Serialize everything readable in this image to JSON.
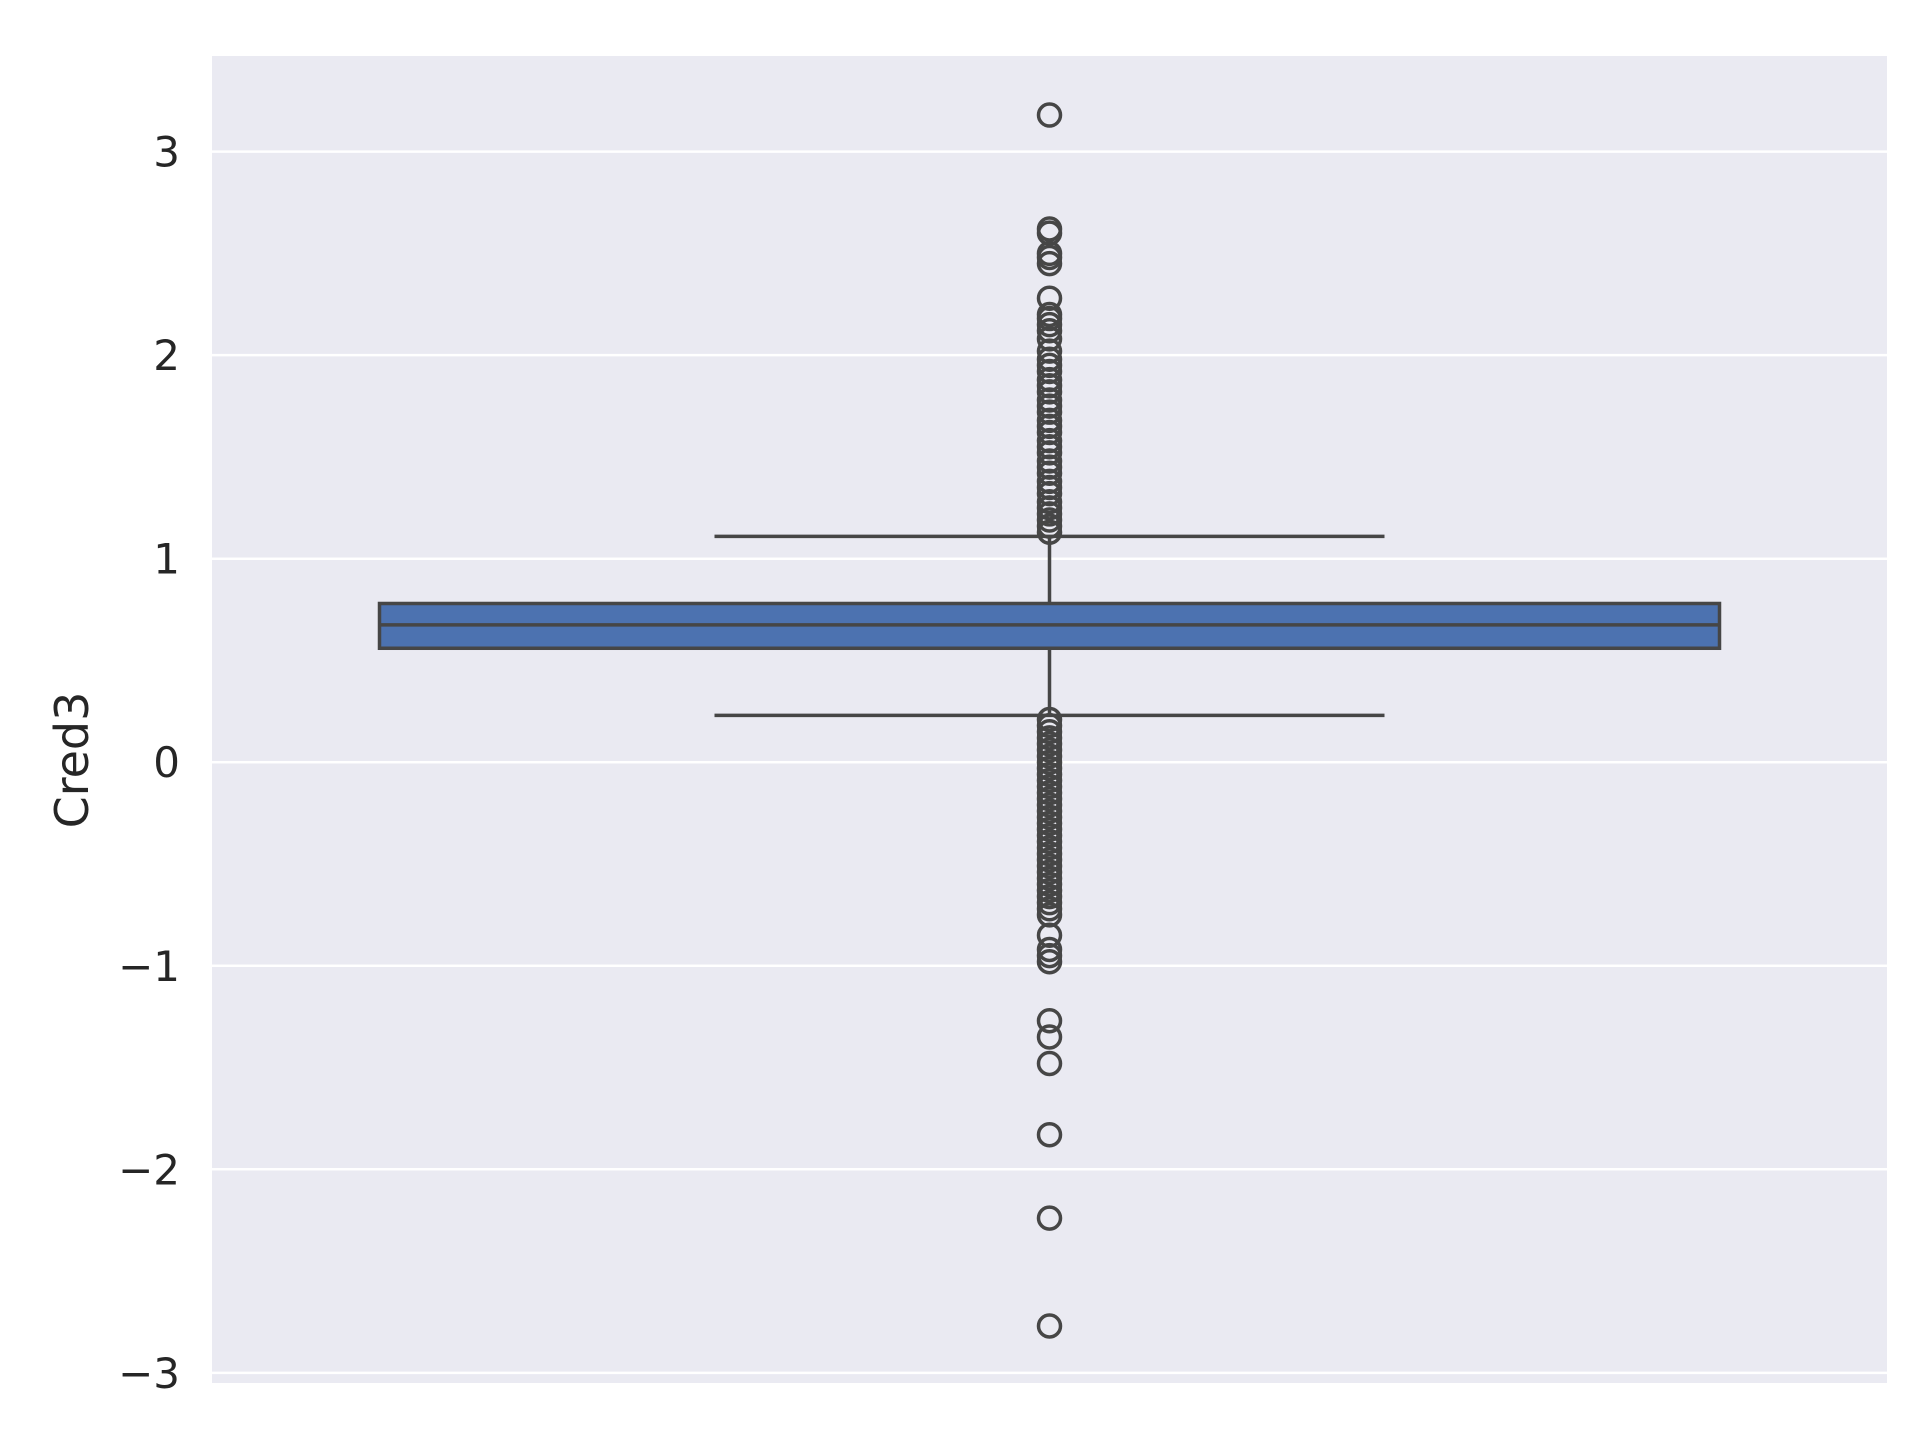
{
  "chart_data": {
    "type": "box",
    "title": "",
    "xlabel": "",
    "ylabel": "Cred3",
    "ylim": [
      -3.05,
      3.47
    ],
    "yticks": [
      3,
      2,
      1,
      0,
      -1,
      -2,
      -3
    ],
    "ytick_labels": [
      "3",
      "2",
      "1",
      "0",
      "−1",
      "−2",
      "−3"
    ],
    "grid": true,
    "colors": {
      "plot_background": "#eaeaf2",
      "grid": "#ffffff",
      "box_fill": "#4c72b0",
      "lines": "#464646"
    },
    "box": {
      "whisker_low": 0.23,
      "q1": 0.56,
      "median": 0.675,
      "q3": 0.78,
      "whisker_high": 1.11
    },
    "outliers_high": [
      3.18,
      2.62,
      2.6,
      2.5,
      2.48,
      2.45,
      2.28,
      2.2,
      2.18,
      2.15,
      2.12,
      2.08,
      2.02,
      1.98,
      1.95,
      1.92,
      1.88,
      1.85,
      1.82,
      1.78,
      1.75,
      1.72,
      1.68,
      1.65,
      1.62,
      1.58,
      1.55,
      1.52,
      1.48,
      1.45,
      1.42,
      1.38,
      1.35,
      1.32,
      1.28,
      1.25,
      1.22,
      1.19,
      1.16,
      1.13
    ],
    "outliers_low": [
      0.21,
      0.18,
      0.15,
      0.12,
      0.09,
      0.06,
      0.03,
      0.0,
      -0.03,
      -0.06,
      -0.09,
      -0.12,
      -0.15,
      -0.18,
      -0.21,
      -0.24,
      -0.27,
      -0.3,
      -0.33,
      -0.36,
      -0.39,
      -0.42,
      -0.45,
      -0.48,
      -0.51,
      -0.54,
      -0.57,
      -0.6,
      -0.63,
      -0.66,
      -0.69,
      -0.72,
      -0.75,
      -0.85,
      -0.92,
      -0.95,
      -0.98,
      -1.27,
      -1.35,
      -1.48,
      -1.83,
      -2.24,
      -2.77
    ]
  }
}
